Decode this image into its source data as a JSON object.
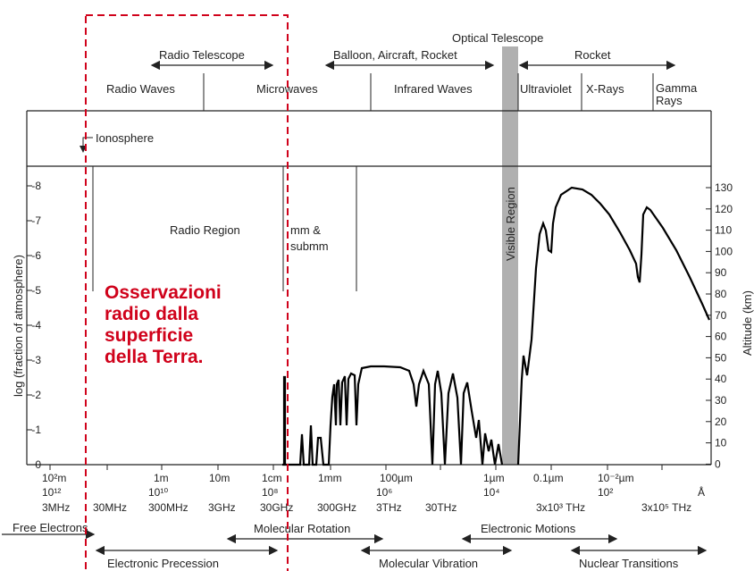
{
  "overlay": {
    "lines": [
      "Osservazioni",
      "radio dalla",
      "superficie",
      "della Terra."
    ],
    "color": "#d0021b"
  },
  "top_labels": {
    "optical_telescope": "Optical Telescope",
    "radio_telescope": "Radio Telescope",
    "balloon": "Balloon, Aircraft, Rocket",
    "rocket": "Rocket"
  },
  "bands": {
    "radio_waves": "Radio Waves",
    "microwaves": "Microwaves",
    "infrared": "Infrared Waves",
    "ultraviolet": "Ultraviolet",
    "xrays": "X-Rays",
    "gamma_line1": "Gamma",
    "gamma_line2": "Rays"
  },
  "ionosphere": "Ionosphere",
  "regions": {
    "radio": "Radio Region",
    "mm_line1": "mm &",
    "mm_line2": "submm",
    "visible": "Visible Region"
  },
  "left_axis": {
    "label": "log (fraction of atmosphere)",
    "ticks": [
      "-8",
      "-7",
      "-6",
      "-5",
      "-4",
      "-3",
      "-2",
      "-1",
      "0"
    ]
  },
  "right_axis": {
    "label": "Altitude (km)",
    "ticks": [
      "130",
      "120",
      "110",
      "100",
      "90",
      "80",
      "70",
      "60",
      "50",
      "40",
      "30",
      "20",
      "10",
      "0"
    ]
  },
  "wavelength_row": [
    "10²m",
    "1m",
    "10m",
    "1cm",
    "1mm",
    "100µm",
    "1µm",
    "0.1µm",
    "10⁻²µm"
  ],
  "hz_power_row": [
    "10¹²",
    "10¹⁰",
    "10⁸",
    "10⁶",
    "10⁴",
    "10²"
  ],
  "frequency_row": [
    "3MHz",
    "30MHz",
    "300MHz",
    "3GHz",
    "30GHz",
    "300GHz",
    "3THz",
    "30THz",
    "3x10³ THz",
    "3x10⁵ THz"
  ],
  "angstrom": "Å",
  "processes": {
    "free_electrons": "Free Electrons",
    "molecular_rotation": "Molecular Rotation",
    "electronic_motions": "Electronic Motions",
    "electronic_precession": "Electronic Precession",
    "molecular_vibration": "Molecular Vibration",
    "nuclear_transitions": "Nuclear Transitions"
  },
  "colors": {
    "dashed_box": "#d0021b",
    "visible_band": "#b0b0b0"
  }
}
